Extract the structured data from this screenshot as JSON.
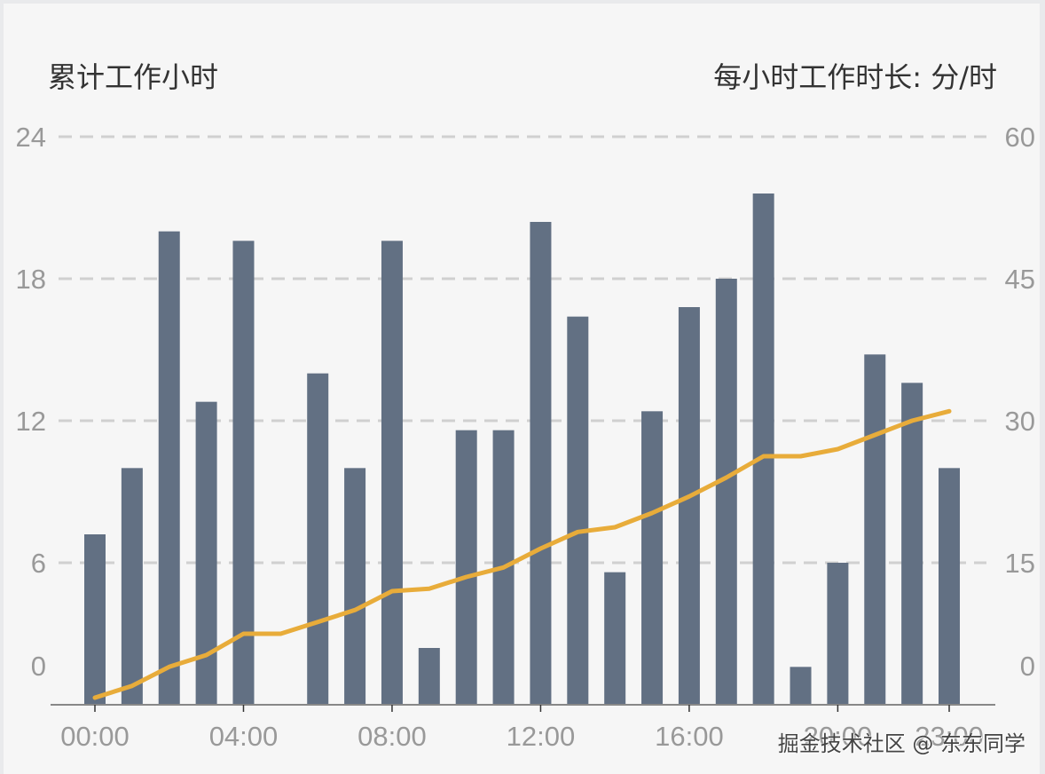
{
  "titles": {
    "left_axis": "累计工作小时",
    "right_axis": "每小时工作时长: 分/时"
  },
  "watermark": "掘金技术社区 @ 东东同学",
  "colors": {
    "bar": "#627083",
    "line": "#e8ac3a",
    "grid": "#d0d0d0",
    "tick_text": "#999999",
    "title_text": "#333333",
    "background": "#f6f6f6"
  },
  "chart_data": {
    "type": "bar+line",
    "title": "",
    "categories": [
      "00:00",
      "01:00",
      "02:00",
      "03:00",
      "04:00",
      "05:00",
      "06:00",
      "07:00",
      "08:00",
      "09:00",
      "10:00",
      "11:00",
      "12:00",
      "13:00",
      "14:00",
      "15:00",
      "16:00",
      "17:00",
      "18:00",
      "19:00",
      "20:00",
      "21:00",
      "22:00",
      "23:00"
    ],
    "x_tick_labels": [
      "00:00",
      "04:00",
      "08:00",
      "12:00",
      "16:00",
      "20:00",
      "23:00"
    ],
    "series": [
      {
        "name": "每小时工作时长: 分/时",
        "type": "bar",
        "axis": "right",
        "values": [
          18,
          25,
          50,
          32,
          49,
          0,
          35,
          25,
          49,
          6,
          29,
          29,
          51,
          41,
          14,
          31,
          42,
          45,
          54,
          4,
          15,
          37,
          34,
          25
        ]
      },
      {
        "name": "累计工作小时",
        "type": "line",
        "axis": "left",
        "values": [
          0.3,
          0.8,
          1.6,
          2.1,
          3.0,
          3.0,
          3.5,
          4.0,
          4.8,
          4.9,
          5.4,
          5.8,
          6.6,
          7.3,
          7.5,
          8.1,
          8.8,
          9.6,
          10.5,
          10.5,
          10.8,
          11.4,
          12.0,
          12.4
        ]
      }
    ],
    "ylabel_left": "累计工作小时",
    "ylabel_right": "每小时工作时长: 分/时",
    "left_ticks": [
      0,
      6,
      12,
      18,
      24
    ],
    "right_ticks": [
      0,
      15,
      30,
      45,
      60
    ],
    "ylim_left": [
      0,
      24
    ],
    "ylim_right": [
      0,
      60
    ],
    "grid": "dashed horizontal",
    "legend": "none"
  }
}
